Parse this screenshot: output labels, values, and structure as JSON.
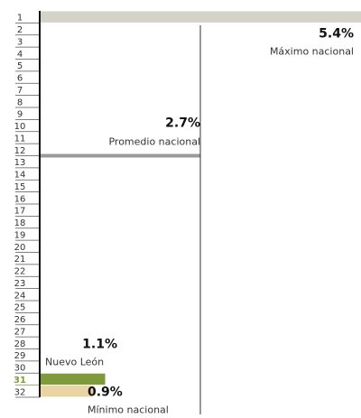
{
  "chart_data": {
    "type": "bar",
    "categories": [
      "1",
      "2",
      "3",
      "4",
      "5",
      "6",
      "7",
      "8",
      "9",
      "10",
      "11",
      "12",
      "13",
      "14",
      "15",
      "16",
      "17",
      "18",
      "19",
      "20",
      "21",
      "22",
      "23",
      "24",
      "25",
      "26",
      "27",
      "28",
      "29",
      "30",
      "31",
      "32"
    ],
    "values": [
      5.4,
      null,
      null,
      null,
      null,
      null,
      null,
      null,
      null,
      null,
      null,
      null,
      2.7,
      null,
      null,
      null,
      null,
      null,
      null,
      null,
      null,
      null,
      null,
      null,
      null,
      null,
      null,
      null,
      null,
      null,
      1.1,
      0.9
    ],
    "value_labels": [
      "5.4%",
      null,
      null,
      null,
      null,
      null,
      null,
      null,
      null,
      null,
      null,
      null,
      "2.7%",
      null,
      null,
      null,
      null,
      null,
      null,
      null,
      null,
      null,
      null,
      null,
      null,
      null,
      null,
      null,
      null,
      null,
      "1.1%",
      "0.9%"
    ],
    "value_names": [
      "Máximo nacional",
      null,
      null,
      null,
      null,
      null,
      null,
      null,
      null,
      null,
      null,
      null,
      "Promedio nacional",
      null,
      null,
      null,
      null,
      null,
      null,
      null,
      null,
      null,
      null,
      null,
      null,
      null,
      null,
      null,
      null,
      null,
      "Nuevo León",
      "Mínimo nacional"
    ],
    "colors": [
      "#d3d3c8",
      null,
      null,
      null,
      null,
      null,
      null,
      null,
      null,
      null,
      null,
      null,
      "#9a9a9a",
      null,
      null,
      null,
      null,
      null,
      null,
      null,
      null,
      null,
      null,
      null,
      null,
      null,
      null,
      null,
      null,
      null,
      "#7f9a3a",
      "#e8d5a3"
    ],
    "xlim": [
      0,
      5.4
    ]
  }
}
